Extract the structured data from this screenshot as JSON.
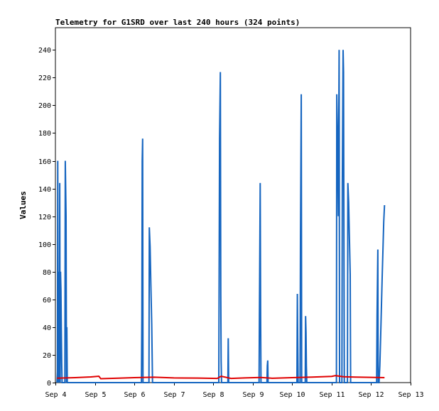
{
  "chart_data": {
    "type": "line",
    "title": "Telemetry for G1SRD over last 240 hours (324 points)",
    "xlabel": "",
    "ylabel": "Values",
    "grid": false,
    "legend": "none",
    "x_ticks": [
      "Sep 4",
      "Sep 5",
      "Sep 6",
      "Sep 7",
      "Sep 8",
      "Sep 9",
      "Sep 10",
      "Sep 11",
      "Sep 12",
      "Sep 13"
    ],
    "xlim": [
      "Sep 4",
      "Sep 13"
    ],
    "y_ticks": [
      0,
      20,
      40,
      60,
      80,
      100,
      120,
      140,
      160,
      180,
      200,
      220,
      240
    ],
    "ylim": [
      0,
      256
    ],
    "series": [
      {
        "color": "#1565c0",
        "points": [
          [
            4.04,
            0
          ],
          [
            4.05,
            8
          ],
          [
            4.06,
            160
          ],
          [
            4.07,
            0
          ],
          [
            4.08,
            80
          ],
          [
            4.09,
            56
          ],
          [
            4.1,
            0
          ],
          [
            4.11,
            144
          ],
          [
            4.12,
            0
          ],
          [
            4.13,
            80
          ],
          [
            4.14,
            67
          ],
          [
            4.15,
            40
          ],
          [
            4.16,
            14
          ],
          [
            4.17,
            0
          ],
          [
            4.24,
            0
          ],
          [
            4.25,
            160
          ],
          [
            4.27,
            120
          ],
          [
            4.28,
            0
          ],
          [
            4.29,
            40
          ],
          [
            4.3,
            0
          ],
          [
            6.18,
            0
          ],
          [
            6.19,
            48
          ],
          [
            6.2,
            160
          ],
          [
            6.21,
            176
          ],
          [
            6.22,
            0
          ],
          [
            6.37,
            0
          ],
          [
            6.38,
            112
          ],
          [
            6.4,
            98
          ],
          [
            6.42,
            70
          ],
          [
            6.44,
            42
          ],
          [
            6.46,
            0
          ],
          [
            8.14,
            0
          ],
          [
            8.15,
            96
          ],
          [
            8.16,
            176
          ],
          [
            8.18,
            224
          ],
          [
            8.19,
            64
          ],
          [
            8.2,
            16
          ],
          [
            8.21,
            0
          ],
          [
            8.37,
            0
          ],
          [
            8.38,
            32
          ],
          [
            8.39,
            0
          ],
          [
            9.16,
            0
          ],
          [
            9.17,
            48
          ],
          [
            9.19,
            144
          ],
          [
            9.2,
            48
          ],
          [
            9.21,
            0
          ],
          [
            9.36,
            0
          ],
          [
            9.37,
            12
          ],
          [
            9.38,
            16
          ],
          [
            9.39,
            0
          ],
          [
            10.12,
            0
          ],
          [
            10.13,
            64
          ],
          [
            10.14,
            32
          ],
          [
            10.15,
            0
          ],
          [
            10.2,
            0
          ],
          [
            10.21,
            104
          ],
          [
            10.23,
            208
          ],
          [
            10.24,
            0
          ],
          [
            10.33,
            0
          ],
          [
            10.34,
            48
          ],
          [
            10.35,
            36
          ],
          [
            10.36,
            12
          ],
          [
            10.37,
            0
          ],
          [
            11.12,
            0
          ],
          [
            11.13,
            208
          ],
          [
            11.15,
            176
          ],
          [
            11.17,
            120
          ],
          [
            11.19,
            240
          ],
          [
            11.2,
            0
          ],
          [
            11.26,
            0
          ],
          [
            11.27,
            144
          ],
          [
            11.29,
            240
          ],
          [
            11.3,
            224
          ],
          [
            11.31,
            120
          ],
          [
            11.32,
            0
          ],
          [
            11.4,
            0
          ],
          [
            11.41,
            144
          ],
          [
            11.43,
            130
          ],
          [
            11.45,
            104
          ],
          [
            11.47,
            78
          ],
          [
            11.48,
            0
          ],
          [
            12.14,
            0
          ],
          [
            12.15,
            48
          ],
          [
            12.17,
            96
          ],
          [
            12.18,
            0
          ],
          [
            12.2,
            0
          ],
          [
            12.22,
            12
          ],
          [
            12.24,
            32
          ],
          [
            12.26,
            54
          ],
          [
            12.28,
            76
          ],
          [
            12.3,
            96
          ],
          [
            12.32,
            116
          ],
          [
            12.34,
            128
          ]
        ]
      },
      {
        "color": "#e00000",
        "points": [
          [
            4.04,
            3.2
          ],
          [
            4.5,
            3.6
          ],
          [
            4.9,
            4.1
          ],
          [
            5.1,
            4.6
          ],
          [
            5.15,
            2.8
          ],
          [
            5.3,
            2.9
          ],
          [
            5.6,
            3.2
          ],
          [
            6.0,
            3.6
          ],
          [
            6.5,
            3.9
          ],
          [
            7.0,
            3.4
          ],
          [
            7.6,
            3.3
          ],
          [
            8.1,
            3.0
          ],
          [
            8.2,
            4.6
          ],
          [
            8.45,
            3.0
          ],
          [
            8.8,
            3.4
          ],
          [
            9.2,
            3.7
          ],
          [
            9.5,
            3.1
          ],
          [
            10.0,
            3.6
          ],
          [
            10.5,
            4.0
          ],
          [
            11.0,
            4.5
          ],
          [
            11.1,
            5.0
          ],
          [
            11.3,
            4.2
          ],
          [
            11.6,
            4.0
          ],
          [
            12.0,
            3.8
          ],
          [
            12.34,
            3.6
          ]
        ]
      }
    ]
  }
}
